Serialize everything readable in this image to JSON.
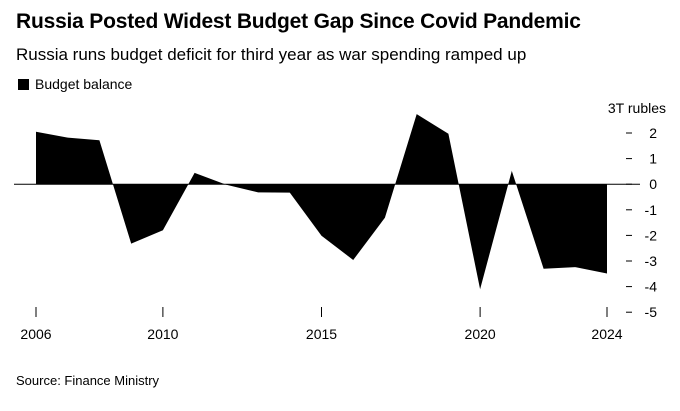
{
  "chart_data": {
    "type": "area",
    "title": "Russia Posted Widest Budget Gap Since Covid Pandemic",
    "subtitle": "Russia runs budget deficit for third year as war spending ramped up",
    "legend": {
      "label": "Budget balance",
      "color": "#000000",
      "placement": "top-left"
    },
    "unit_label": "3T rubles",
    "source": "Source: Finance Ministry",
    "series": [
      {
        "name": "Budget balance",
        "x": [
          2006,
          2007,
          2008,
          2009,
          2010,
          2011,
          2012,
          2013,
          2014,
          2015,
          2016,
          2017,
          2018,
          2019,
          2020,
          2021,
          2022,
          2023,
          2024
        ],
        "values": [
          2.05,
          1.82,
          1.72,
          -2.32,
          -1.8,
          0.44,
          -0.02,
          -0.32,
          -0.33,
          -2.01,
          -2.96,
          -1.31,
          2.74,
          1.97,
          -4.1,
          0.52,
          -3.3,
          -3.24,
          -3.49
        ]
      }
    ],
    "x_ticks": [
      "2006",
      "2010",
      "2015",
      "2020",
      "2024"
    ],
    "y_ticks": [
      "2",
      "1",
      "0",
      "-1",
      "-2",
      "-3",
      "-4",
      "-5"
    ],
    "xlim": [
      2006,
      2024
    ],
    "ylim": [
      -5,
      2
    ],
    "grid": false
  }
}
